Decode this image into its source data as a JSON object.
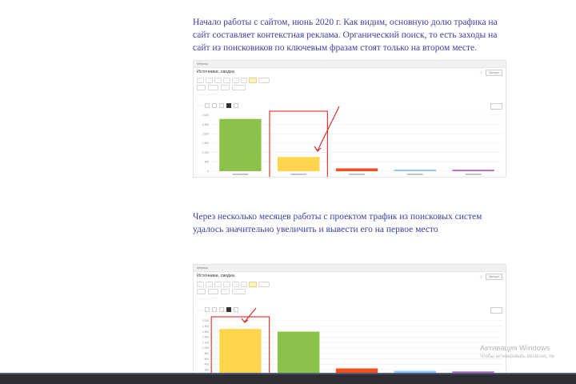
{
  "paragraphs": {
    "first": "Начало работы с сайтом, июнь 2020 г. Как видим, основную долю трафика на сайт составляет контекстная реклама. Органический поиск, то есть заходы на сайт из поисковиков по ключевым фразам  стоят только на втором месте.",
    "second": "Через несколько месяцев работы с проектом трафик из поисковых систем удалось значительно увеличить и вывести его на первое место"
  },
  "report": {
    "title": "Источники, сводка",
    "breadcrumb": "Метрика",
    "export_label": "Экспорт"
  },
  "windows_activation": {
    "title": "Активация Windows",
    "subtitle": "Чтобы активировать Windows, пе"
  },
  "colors": {
    "paragraph_text": "#3a3fa8",
    "highlight_box": "#e53935",
    "arrow": "#d32f2f",
    "bar_green": "#8bc34a",
    "bar_yellow": "#ffd54f",
    "bar_red": "#f4511e",
    "bar_blue": "#90caf9",
    "bar_purple": "#ba68c8"
  },
  "chart_data": [
    {
      "type": "bar",
      "ylim": [
        0,
        3000
      ],
      "y_ticks": [
        "3 000",
        "2 500",
        "2 000",
        "1 500",
        "1 000",
        "500",
        "0"
      ],
      "bars": [
        {
          "value": 2800,
          "color": "#8bc34a"
        },
        {
          "value": 760,
          "color": "#ffd54f"
        },
        {
          "value": 150,
          "color": "#f4511e"
        },
        {
          "value": 90,
          "color": "#90caf9"
        },
        {
          "value": 80,
          "color": "#ba68c8"
        }
      ],
      "highlighted_bar": 1
    },
    {
      "type": "bar",
      "ylim": [
        0,
        2000
      ],
      "y_ticks": [
        "2 000",
        "1 800",
        "1 600",
        "1 400",
        "1 200",
        "1 000",
        "800",
        "600",
        "400",
        "200",
        "0"
      ],
      "bars": [
        {
          "value": 1700,
          "color": "#ffd54f"
        },
        {
          "value": 1600,
          "color": "#8bc34a"
        },
        {
          "value": 250,
          "color": "#f4511e"
        },
        {
          "value": 160,
          "color": "#90caf9"
        },
        {
          "value": 140,
          "color": "#ba68c8"
        }
      ],
      "highlighted_bar": 0
    }
  ]
}
